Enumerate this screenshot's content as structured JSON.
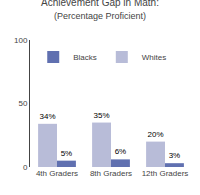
{
  "chart_data": {
    "type": "bar",
    "title": "Achievement Gap in Math:",
    "subtitle": "(Percentage Proficient)",
    "categories": [
      "4th Graders",
      "8th Graders",
      "12th Graders"
    ],
    "series": [
      {
        "name": "Whites",
        "color": "#b8bcd8",
        "values": [
          34,
          35,
          20
        ],
        "value_labels": [
          "34%",
          "35%",
          "20%"
        ]
      },
      {
        "name": "Blacks",
        "color": "#6070b0",
        "values": [
          5,
          6,
          3
        ],
        "value_labels": [
          "5%",
          "6%",
          "3%"
        ]
      }
    ],
    "ylim": [
      0,
      100
    ],
    "yticks": [
      0,
      50,
      100
    ],
    "grid": false,
    "legend": "upper left",
    "data_labels": true
  }
}
